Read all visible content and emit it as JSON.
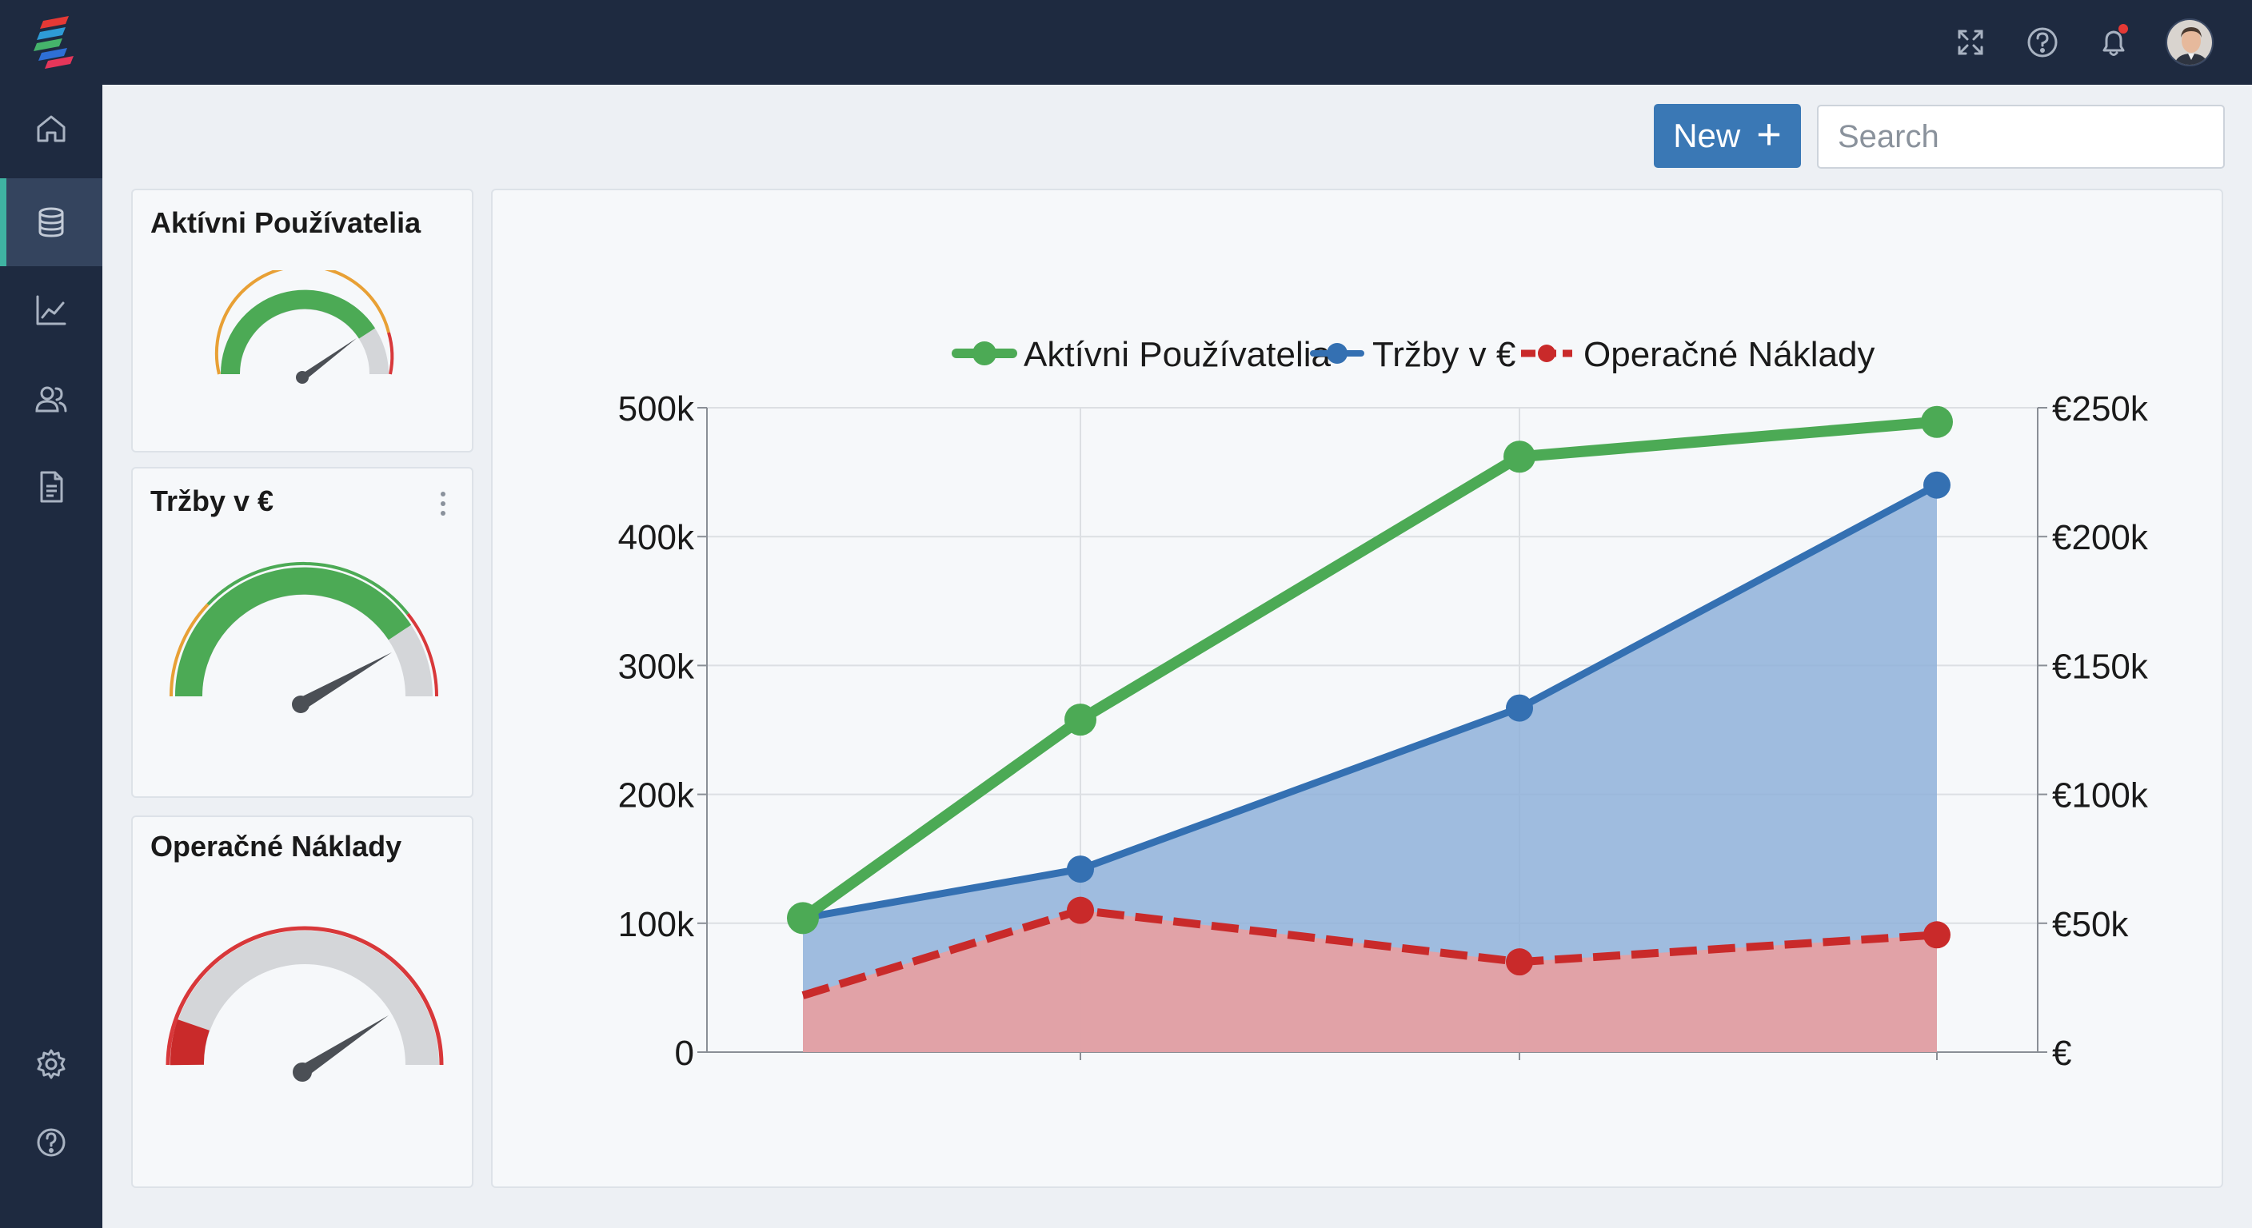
{
  "topbar": {
    "icons": [
      "fullscreen-icon",
      "help-icon",
      "bell-icon"
    ],
    "notification_dot_color": "#e53935"
  },
  "sidebar": {
    "items": [
      {
        "name": "home",
        "icon": "home-icon",
        "active": false
      },
      {
        "name": "database",
        "icon": "database-icon",
        "active": true
      },
      {
        "name": "analytics",
        "icon": "chart-icon",
        "active": false
      },
      {
        "name": "users",
        "icon": "users-icon",
        "active": false
      },
      {
        "name": "documents",
        "icon": "document-icon",
        "active": false
      }
    ],
    "bottom_items": [
      {
        "name": "settings",
        "icon": "gear-icon"
      },
      {
        "name": "help",
        "icon": "help-icon"
      }
    ],
    "accent": "#3fb3a2"
  },
  "toolbar": {
    "new_label": "New",
    "search_placeholder": "Search"
  },
  "cards": [
    {
      "title": "Aktívni Používatelia",
      "gauge_level": 0.72
    },
    {
      "title": "Tržby v €",
      "gauge_level": 0.78
    },
    {
      "title": "Operačné Náklady",
      "gauge_level": 0.85
    }
  ],
  "chart_data": {
    "type": "line",
    "legend_position": "top-center",
    "grid": true,
    "x": [
      1,
      2,
      3,
      4
    ],
    "ylim_left": [
      0,
      500000
    ],
    "ylim_right": [
      0,
      250000
    ],
    "left_ticks": [
      "0",
      "100k",
      "200k",
      "300k",
      "400k",
      "500k"
    ],
    "right_ticks": [
      "€",
      "€50k",
      "€100k",
      "€150k",
      "€200k",
      "€250k"
    ],
    "series": [
      {
        "name": "Aktívni Používatelia",
        "axis": "left",
        "style": "line",
        "color": "#4caa55",
        "values": [
          104000,
          258000,
          462000,
          489000
        ]
      },
      {
        "name": "Tržby v €",
        "axis": "left",
        "style": "area",
        "color": "#3470b2",
        "values": [
          104000,
          142000,
          267000,
          440000
        ]
      },
      {
        "name": "Operačné Náklady",
        "axis": "left",
        "style": "dashed-area",
        "color": "#c92a2a",
        "values": [
          44000,
          110000,
          70000,
          91000
        ]
      }
    ]
  }
}
